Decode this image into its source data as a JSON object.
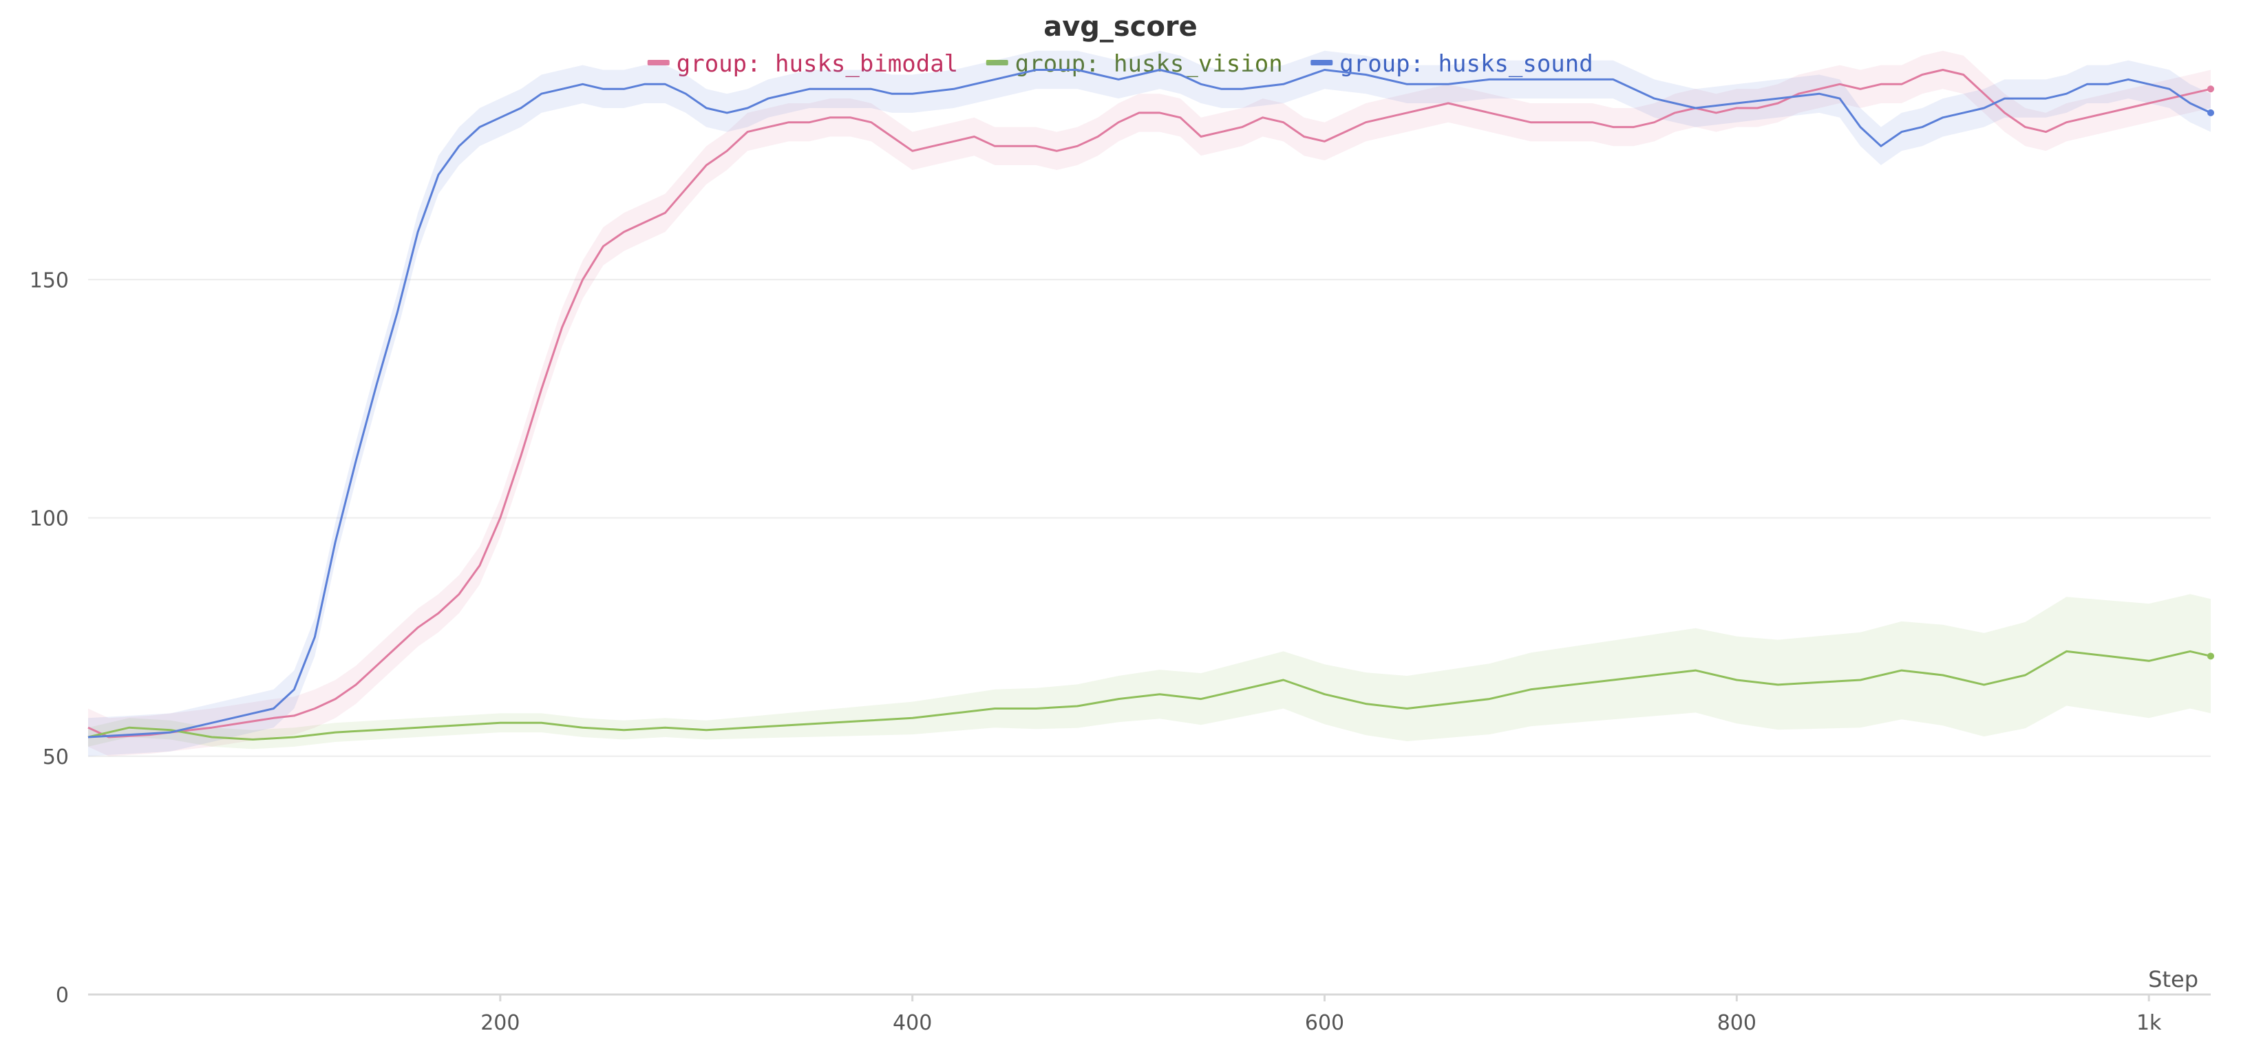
{
  "chart_data": {
    "type": "line",
    "title": "avg_score",
    "xlabel": "Step",
    "ylabel": "",
    "xlim": [
      0,
      1030
    ],
    "ylim": [
      0,
      200
    ],
    "x_ticks": [
      200,
      400,
      600,
      800,
      1000
    ],
    "x_tick_labels": [
      "200",
      "400",
      "600",
      "800",
      "1k"
    ],
    "y_ticks": [
      0,
      50,
      100,
      150
    ],
    "y_tick_labels": [
      "0",
      "50",
      "100",
      "150"
    ],
    "grid": true,
    "legend_position": "top-center",
    "series": [
      {
        "name": "group: husks_bimodal",
        "color": "#e07ba0",
        "label_color": "#c0305f",
        "x": [
          0,
          10,
          30,
          60,
          90,
          100,
          110,
          120,
          130,
          140,
          150,
          160,
          170,
          180,
          190,
          200,
          210,
          220,
          230,
          240,
          250,
          260,
          270,
          280,
          290,
          300,
          310,
          320,
          330,
          340,
          350,
          360,
          370,
          380,
          390,
          400,
          410,
          420,
          430,
          440,
          450,
          460,
          470,
          480,
          490,
          500,
          510,
          520,
          530,
          540,
          550,
          560,
          570,
          580,
          590,
          600,
          610,
          620,
          630,
          640,
          650,
          660,
          670,
          680,
          690,
          700,
          710,
          720,
          730,
          740,
          750,
          760,
          770,
          780,
          790,
          800,
          810,
          820,
          830,
          840,
          850,
          860,
          870,
          880,
          890,
          900,
          910,
          920,
          930,
          940,
          950,
          960,
          970,
          980,
          990,
          1000,
          1010,
          1020,
          1030
        ],
        "y": [
          56,
          54,
          54.5,
          56,
          58,
          58.5,
          60,
          62,
          65,
          69,
          73,
          77,
          80,
          84,
          90,
          100,
          113,
          127,
          140,
          150,
          157,
          160,
          162,
          164,
          169,
          174,
          177,
          181,
          182,
          183,
          183,
          184,
          184,
          183,
          180,
          177,
          178,
          179,
          180,
          178,
          178,
          178,
          177,
          178,
          180,
          183,
          185,
          185,
          184,
          180,
          181,
          182,
          184,
          183,
          180,
          179,
          181,
          183,
          184,
          185,
          186,
          187,
          186,
          185,
          184,
          183,
          183,
          183,
          183,
          182,
          182,
          183,
          185,
          186,
          185,
          186,
          186,
          187,
          189,
          190,
          191,
          190,
          191,
          191,
          193,
          194,
          193,
          189,
          185,
          182,
          181,
          183,
          184,
          185,
          186,
          187,
          188,
          189,
          190
        ]
      },
      {
        "name": "group: husks_vision",
        "color": "#8fbf5a",
        "label_color": "#5a7a28",
        "x": [
          0,
          20,
          40,
          60,
          80,
          100,
          120,
          140,
          160,
          180,
          200,
          220,
          240,
          260,
          280,
          300,
          320,
          340,
          360,
          380,
          400,
          420,
          440,
          460,
          480,
          500,
          520,
          540,
          560,
          580,
          600,
          620,
          640,
          660,
          680,
          700,
          720,
          740,
          760,
          780,
          800,
          820,
          840,
          860,
          880,
          900,
          920,
          940,
          960,
          980,
          1000,
          1020,
          1030
        ],
        "y": [
          54,
          56,
          55.5,
          54,
          53.5,
          54,
          55,
          55.5,
          56,
          56.5,
          57,
          57,
          56,
          55.5,
          56,
          55.5,
          56,
          56.5,
          57,
          57.5,
          58,
          59,
          60,
          60,
          60.5,
          62,
          63,
          62,
          64,
          66,
          63,
          61,
          60,
          61,
          62,
          64,
          65,
          66,
          67,
          68,
          66,
          65,
          65.5,
          66,
          68,
          67,
          65,
          67,
          72,
          71,
          70,
          72,
          71
        ]
      },
      {
        "name": "group: husks_sound",
        "color": "#5a7fd8",
        "label_color": "#3a5fc0",
        "x": [
          0,
          20,
          40,
          60,
          80,
          90,
          100,
          110,
          120,
          130,
          140,
          150,
          160,
          170,
          180,
          190,
          200,
          210,
          220,
          230,
          240,
          250,
          260,
          270,
          280,
          290,
          300,
          310,
          320,
          330,
          340,
          350,
          360,
          370,
          380,
          390,
          400,
          420,
          440,
          460,
          470,
          480,
          490,
          500,
          510,
          520,
          530,
          540,
          550,
          560,
          580,
          600,
          620,
          640,
          660,
          680,
          700,
          720,
          740,
          760,
          780,
          800,
          820,
          840,
          850,
          860,
          870,
          880,
          890,
          900,
          910,
          920,
          930,
          940,
          950,
          960,
          970,
          980,
          990,
          1000,
          1010,
          1020,
          1030
        ],
        "y": [
          54,
          54.5,
          55,
          57,
          59,
          60,
          64,
          75,
          95,
          112,
          128,
          143,
          160,
          172,
          178,
          182,
          184,
          186,
          189,
          190,
          191,
          190,
          190,
          191,
          191,
          189,
          186,
          185,
          186,
          188,
          189,
          190,
          190,
          190,
          190,
          189,
          189,
          190,
          192,
          194,
          194,
          194,
          193,
          192,
          193,
          194,
          193,
          191,
          190,
          190,
          191,
          194,
          193,
          191,
          191,
          192,
          192,
          192,
          192,
          188,
          186,
          187,
          188,
          189,
          188,
          182,
          178,
          181,
          182,
          184,
          185,
          186,
          188,
          188,
          188,
          189,
          191,
          191,
          192,
          191,
          190,
          187,
          185
        ]
      }
    ]
  }
}
